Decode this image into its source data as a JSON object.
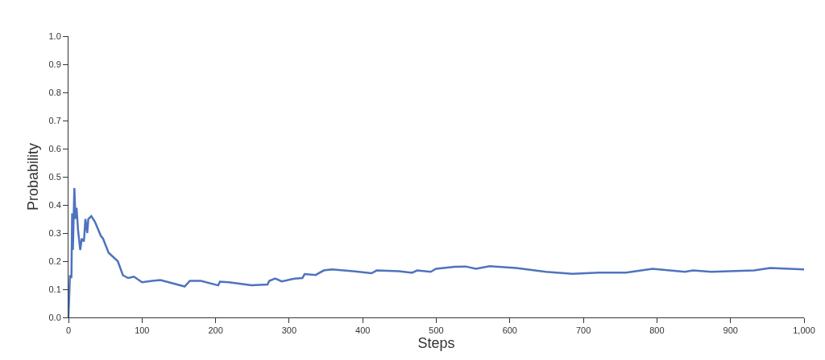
{
  "chart_data": {
    "type": "line",
    "xlabel": "Steps",
    "ylabel": "Probability",
    "xlim": [
      0,
      1000
    ],
    "ylim": [
      0,
      1
    ],
    "xticks": [
      0,
      100,
      200,
      300,
      400,
      500,
      600,
      700,
      800,
      900,
      {
        "value": 1000,
        "label": "1,000"
      }
    ],
    "yticks": [
      {
        "value": 0,
        "label": "0.0"
      },
      0.1,
      0.2,
      0.3,
      0.4,
      0.5,
      0.6,
      0.7,
      0.8,
      0.9,
      {
        "value": 1,
        "label": "1.0"
      }
    ],
    "marker": "none",
    "line_style": "solid",
    "series": [
      {
        "color": "#4e73be",
        "x": [
          0,
          2,
          4,
          5,
          6,
          8,
          9.6,
          11,
          13,
          16,
          18,
          21,
          23,
          25.5,
          27,
          31,
          36,
          44,
          47,
          54.5,
          67,
          74,
          81,
          89,
          100,
          114,
          125,
          158,
          165,
          180,
          203.6,
          206,
          218,
          249,
          270.6,
          273,
          281,
          290,
          307,
          318,
          321,
          336,
          347,
          358,
          387,
          412,
          419,
          449,
          467,
          474,
          492.5,
          499.6,
          525,
          540,
          554,
          572.5,
          608.5,
          649,
          685,
          721.6,
          758,
          794,
          838,
          849,
          874,
          932,
          954,
          1000
        ],
        "values": [
          0.0,
          0.15,
          0.14,
          0.37,
          0.24,
          0.46,
          0.35,
          0.39,
          0.31,
          0.24,
          0.28,
          0.27,
          0.35,
          0.3,
          0.35,
          0.36,
          0.34,
          0.29,
          0.28,
          0.23,
          0.2,
          0.15,
          0.14,
          0.145,
          0.125,
          0.13,
          0.133,
          0.11,
          0.13,
          0.13,
          0.114,
          0.127,
          0.125,
          0.114,
          0.117,
          0.13,
          0.138,
          0.128,
          0.138,
          0.14,
          0.154,
          0.151,
          0.167,
          0.171,
          0.164,
          0.157,
          0.167,
          0.164,
          0.159,
          0.167,
          0.162,
          0.173,
          0.18,
          0.181,
          0.173,
          0.182,
          0.176,
          0.162,
          0.155,
          0.159,
          0.159,
          0.173,
          0.162,
          0.167,
          0.162,
          0.167,
          0.176,
          0.171
        ]
      }
    ]
  }
}
